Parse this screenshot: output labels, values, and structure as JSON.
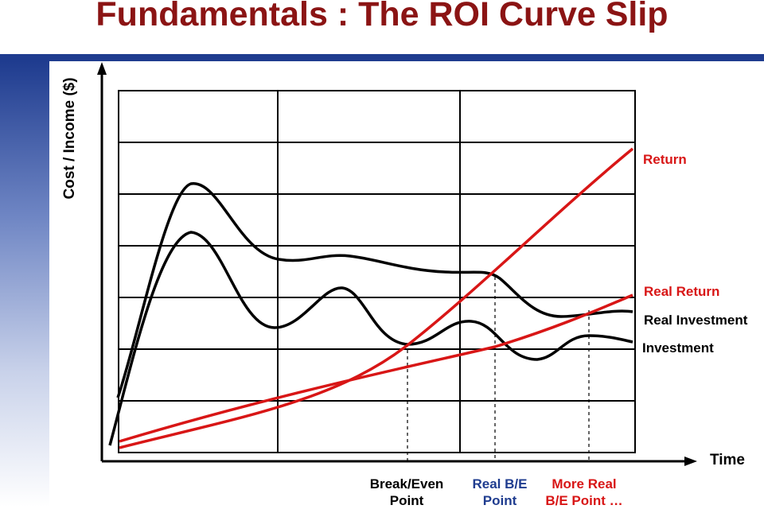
{
  "title": "Fundamentals : The ROI Curve Slip",
  "y_axis_label": "Cost / Income ($)",
  "x_axis_label": "Time",
  "series_labels": {
    "return": "Return",
    "real_return": "Real Return",
    "real_investment": "Real Investment",
    "investment": "Investment"
  },
  "point_labels": {
    "break_even_1": "Break/Even",
    "break_even_2": "Point",
    "real_be_1": "Real B/E",
    "real_be_2": "Point",
    "more_real_1": "More Real",
    "more_real_2": "B/E Point …"
  },
  "colors": {
    "title": "#8b1414",
    "accent_rule": "#1f3c8f",
    "return_curves": "#d81616",
    "investment_curves": "#000000",
    "blue_label": "#1f3c8f"
  }
}
